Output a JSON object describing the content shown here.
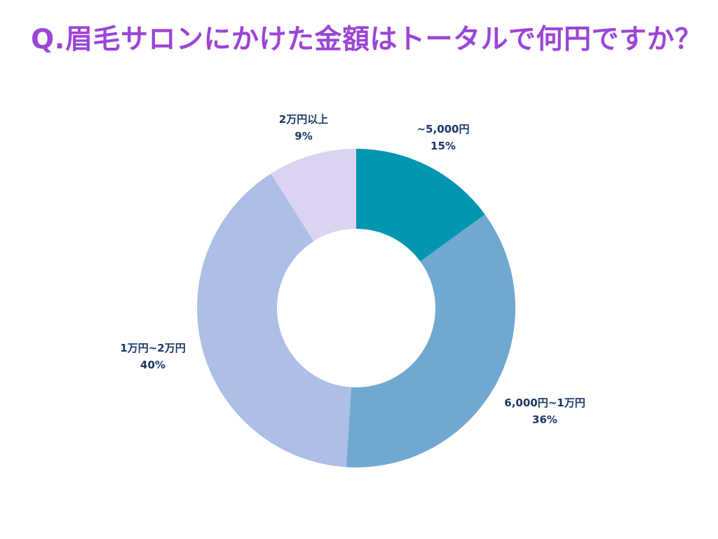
{
  "title": "Q.眉毛サロンにかけた金額はトータルで何円ですか？",
  "chart_data": {
    "type": "pie",
    "donut": true,
    "categories": [
      "~5,000円",
      "6,000円~1万円",
      "1万円~2万円",
      "2万円以上"
    ],
    "values": [
      15,
      36,
      40,
      9
    ],
    "value_labels": [
      "15%",
      "36%",
      "40%",
      "9%"
    ],
    "colors": [
      "#0396b0",
      "#71a8d0",
      "#aebfe6",
      "#dcd2f2"
    ],
    "legend": "none"
  }
}
